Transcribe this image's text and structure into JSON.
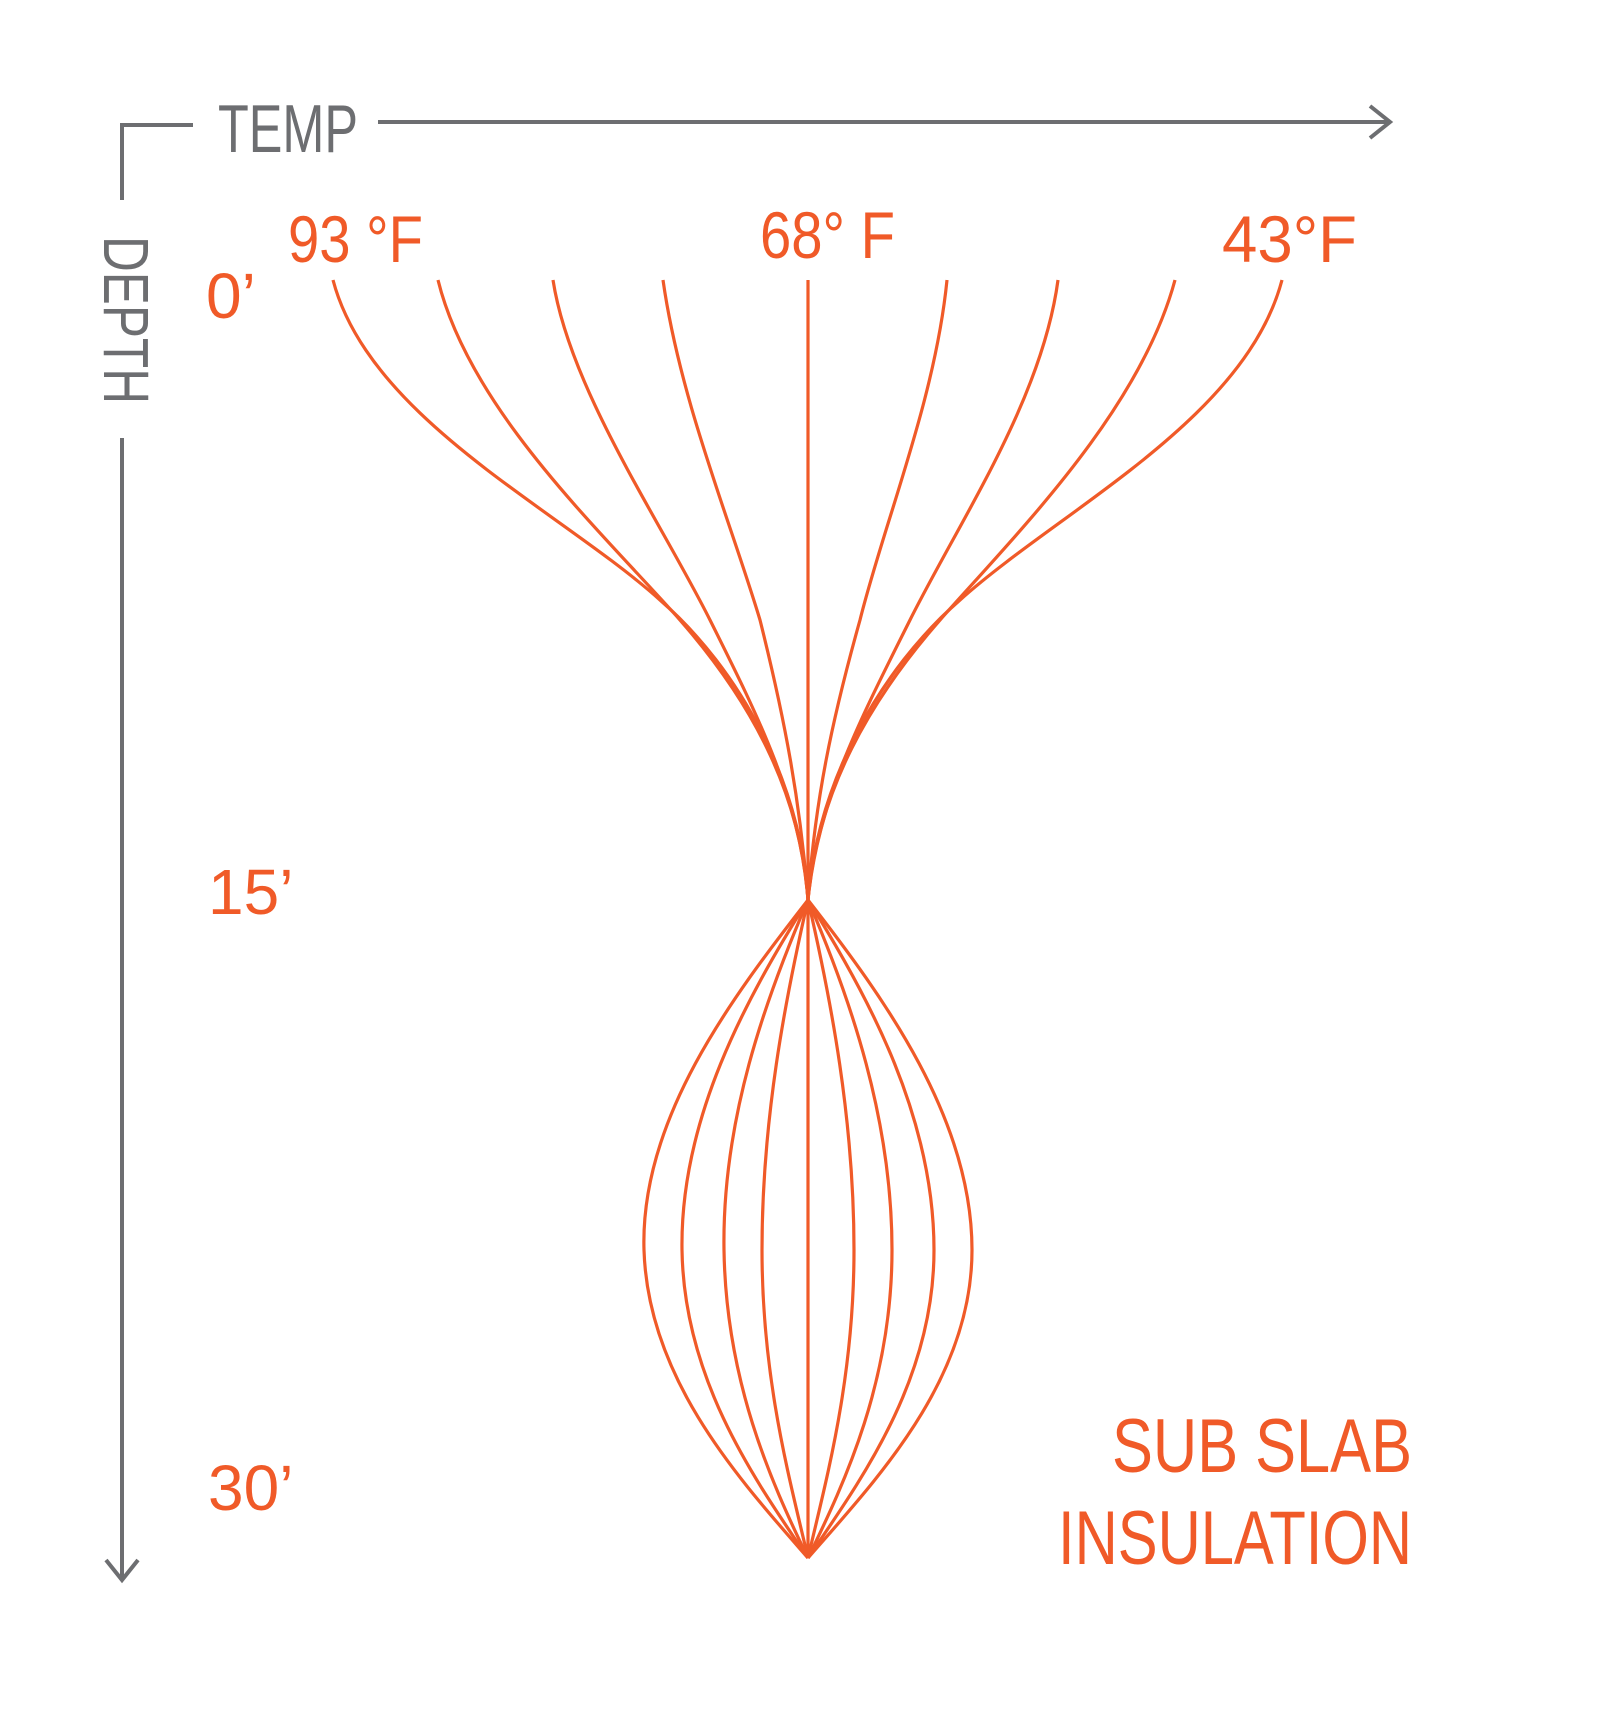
{
  "axes": {
    "x_label": "TEMP",
    "y_label": "DEPTH"
  },
  "temperature_labels": [
    "93 °F",
    "68° F",
    "43°F"
  ],
  "depth_labels": [
    "0’",
    "15’",
    "30’"
  ],
  "caption": {
    "line1": "SUB SLAB",
    "line2": "INSULATION"
  },
  "colors": {
    "accent": "#f05a28",
    "axis": "#6d6e71"
  },
  "curves": {
    "count": 9,
    "converge_depth": "15’",
    "end_depth": "30’"
  }
}
